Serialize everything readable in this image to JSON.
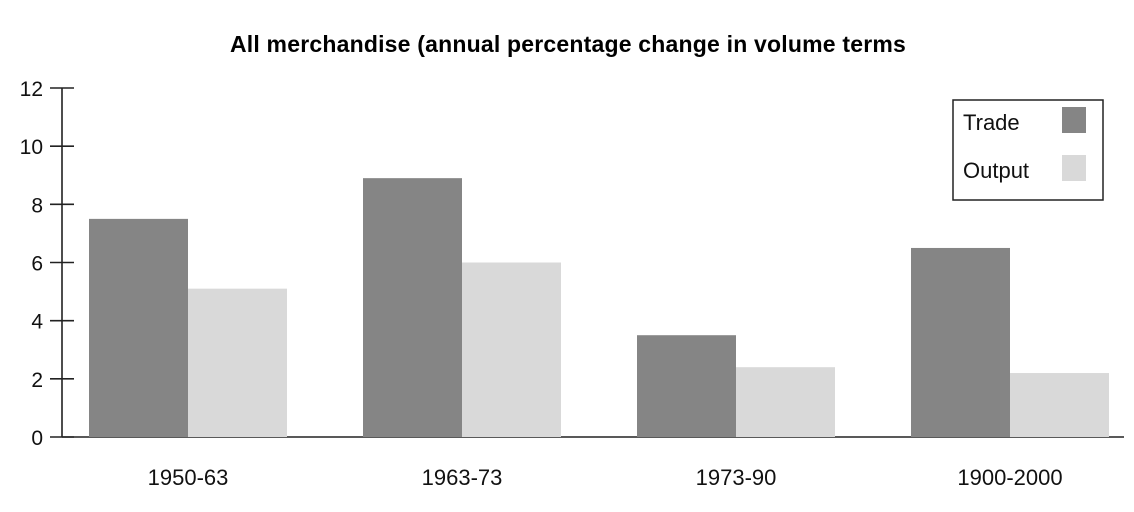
{
  "chart_data": {
    "type": "bar",
    "title": "All merchandise (annual percentage change in volume terms",
    "categories": [
      "1950-63",
      "1963-73",
      "1973-90",
      "1900-2000"
    ],
    "series": [
      {
        "name": "Trade",
        "values": [
          7.5,
          8.9,
          3.5,
          6.5
        ]
      },
      {
        "name": "Output",
        "values": [
          5.1,
          6.0,
          2.4,
          2.2
        ]
      }
    ],
    "ylim": [
      0,
      12
    ],
    "yticks": [
      0,
      2,
      4,
      6,
      8,
      10,
      12
    ],
    "legend_position": "top-right"
  },
  "colors": {
    "trade": "#858585",
    "output": "#d9d9d9",
    "axis": "#222222"
  }
}
